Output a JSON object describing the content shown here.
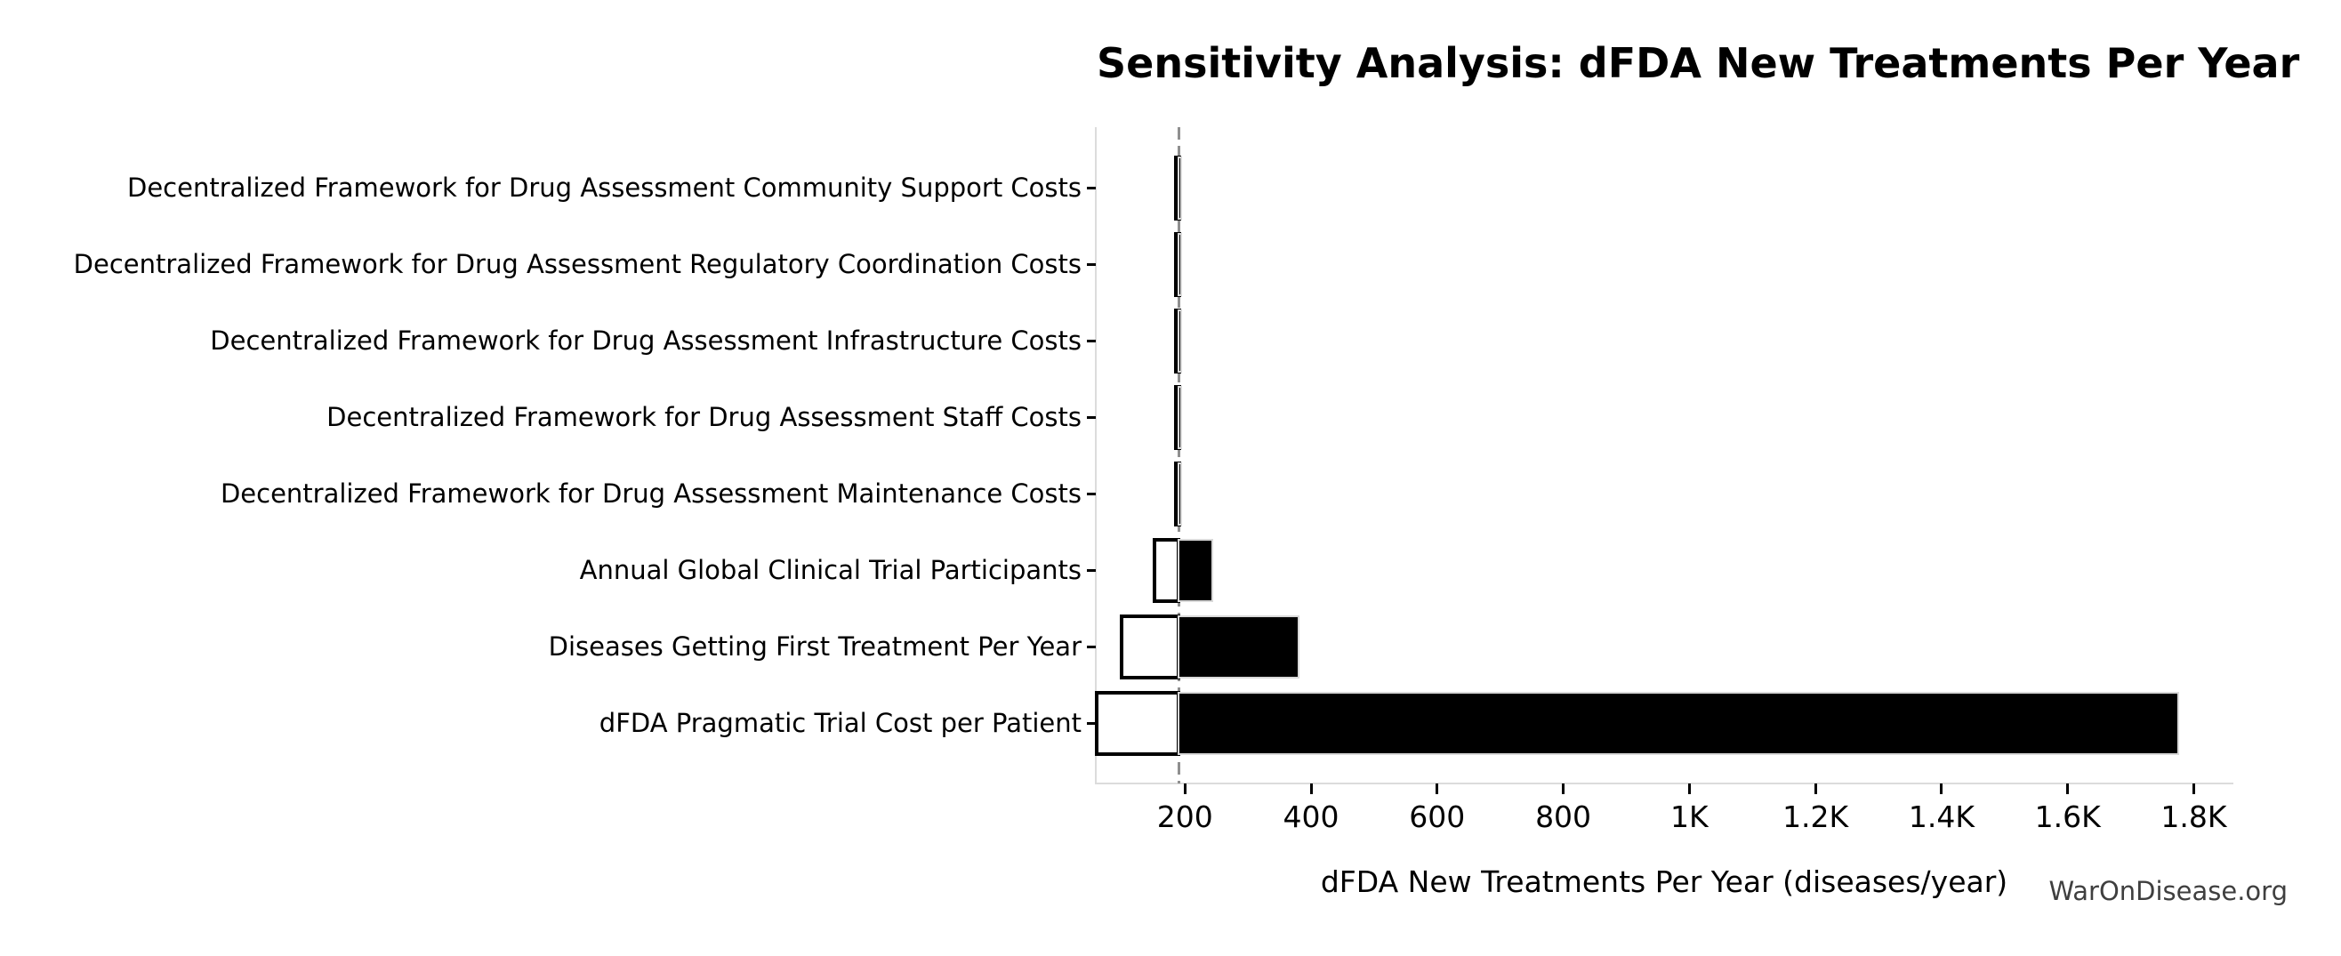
{
  "title": "Sensitivity Analysis: dFDA New Treatments Per Year",
  "watermark": "WarOnDisease.org",
  "chart_data": {
    "type": "bar",
    "subtype": "tornado-sensitivity",
    "orientation": "horizontal",
    "title": "Sensitivity Analysis: dFDA New Treatments Per Year",
    "xlabel": "dFDA New Treatments Per Year (diseases/year)",
    "ylabel": "",
    "grid": false,
    "legend": "none",
    "baseline_value": 190,
    "xlim": [
      60,
      1860
    ],
    "x_tick_values": [
      200,
      400,
      600,
      800,
      1000,
      1200,
      1400,
      1600,
      1800
    ],
    "x_tick_labels": [
      "200",
      "400",
      "600",
      "800",
      "1K",
      "1.2K",
      "1.4K",
      "1.6K",
      "1.8K"
    ],
    "categories": [
      "Decentralized Framework for Drug Assessment Community Support Costs",
      "Decentralized Framework for Drug Assessment Regulatory Coordination Costs",
      "Decentralized Framework for Drug Assessment Infrastructure Costs",
      "Decentralized Framework for Drug Assessment Staff Costs",
      "Decentralized Framework for Drug Assessment Maintenance Costs",
      "Annual Global Clinical Trial Participants",
      "Diseases Getting First Treatment Per Year",
      "dFDA Pragmatic Trial Cost per Patient"
    ],
    "series": [
      {
        "name": "low",
        "fill": "#ffffff",
        "edge": "#000000",
        "values": [
          185,
          185,
          185,
          185,
          185,
          152,
          99,
          60
        ]
      },
      {
        "name": "high",
        "fill": "#000000",
        "edge": "#d9d9d9",
        "values": [
          194,
          194,
          194,
          194,
          194,
          243,
          380,
          1775
        ]
      }
    ],
    "colors": {
      "low_bar_fill": "#ffffff",
      "low_bar_edge": "#000000",
      "high_bar_fill": "#000000",
      "high_bar_edge": "#d9d9d9",
      "baseline_line": "#8f8f8f",
      "spine": "#dcdcdc",
      "text": "#000000",
      "watermark_text": "#3f3f3f",
      "background": "#ffffff"
    }
  }
}
